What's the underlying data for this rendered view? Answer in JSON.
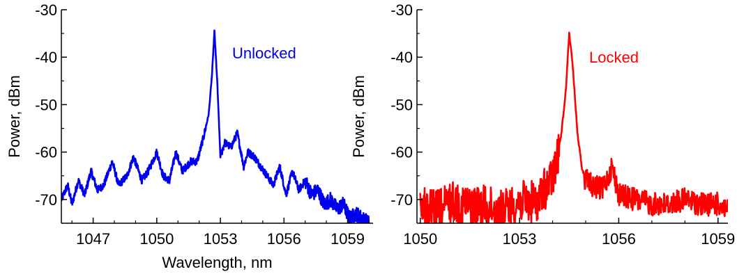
{
  "chart_data": [
    {
      "type": "line",
      "title": "",
      "xlabel": "Wavelength, nm",
      "ylabel": "Power, dBm",
      "xlim": [
        1045.5,
        1060.2
      ],
      "ylim": [
        -75,
        -30
      ],
      "xticks": [
        1047,
        1050,
        1053,
        1056,
        1059
      ],
      "xtick_labels": [
        "1047",
        "1050",
        "1053",
        "1056",
        "1059"
      ],
      "yticks": [
        -70,
        -60,
        -50,
        -40,
        -30
      ],
      "ytick_labels": [
        "-70",
        "-60",
        "-50",
        "-40",
        "-30"
      ],
      "annotation": "Unlocked",
      "color": "#0000ee",
      "series": [
        {
          "x": [
            1045.5,
            1045.8,
            1046.0,
            1046.3,
            1046.6,
            1046.9,
            1047.2,
            1047.5,
            1047.9,
            1048.2,
            1048.6,
            1048.9,
            1049.3,
            1049.6,
            1050.0,
            1050.3,
            1050.6,
            1050.9,
            1051.2,
            1051.6,
            1051.9,
            1052.2,
            1052.45,
            1052.6,
            1052.72,
            1052.85,
            1053.0,
            1053.2,
            1053.5,
            1053.8,
            1054.1,
            1054.3,
            1054.6,
            1054.9,
            1055.2,
            1055.5,
            1055.8,
            1056.1,
            1056.4,
            1056.7,
            1057.0,
            1057.3,
            1057.6,
            1057.9,
            1058.2,
            1058.5,
            1058.8,
            1059.1,
            1059.4,
            1059.7,
            1060.0
          ],
          "values": [
            -70,
            -67,
            -71,
            -66,
            -69,
            -64,
            -68,
            -67,
            -62,
            -67,
            -65,
            -61,
            -66,
            -64,
            -60,
            -65,
            -66,
            -60,
            -64,
            -62,
            -62,
            -57,
            -52,
            -44,
            -34.5,
            -45,
            -61,
            -58,
            -59,
            -56,
            -63,
            -60,
            -61,
            -63,
            -65,
            -67,
            -63,
            -69,
            -64,
            -68,
            -66,
            -69,
            -68,
            -71,
            -70,
            -72,
            -71,
            -74,
            -73,
            -74,
            -75
          ]
        }
      ]
    },
    {
      "type": "line",
      "title": "",
      "xlabel": "",
      "ylabel": "Power, dBm",
      "xlim": [
        1049.9,
        1059.3
      ],
      "ylim": [
        -75,
        -30
      ],
      "xticks": [
        1050,
        1053,
        1056,
        1059
      ],
      "xtick_labels": [
        "1050",
        "1053",
        "1056",
        "1059"
      ],
      "yticks": [
        -70,
        -60,
        -50,
        -40,
        -30
      ],
      "ytick_labels": [
        "-70",
        "-60",
        "-50",
        "-40",
        "-30"
      ],
      "annotation": "Locked",
      "color": "#ff0000",
      "series": [
        {
          "x": [
            1050.0,
            1050.5,
            1051.0,
            1051.5,
            1052.0,
            1052.5,
            1053.0,
            1053.5,
            1054.0,
            1054.25,
            1054.4,
            1054.5,
            1054.6,
            1054.75,
            1054.9,
            1055.2,
            1055.5,
            1055.8,
            1056.0,
            1056.5,
            1057.0,
            1057.5,
            1058.0,
            1058.5,
            1059.0,
            1059.3
          ],
          "values": [
            -70,
            -71,
            -69,
            -70,
            -70,
            -71,
            -69,
            -69,
            -64,
            -57,
            -47,
            -35,
            -41,
            -56,
            -64,
            -66,
            -67,
            -62,
            -68,
            -69,
            -70,
            -70,
            -69,
            -70,
            -70,
            -71
          ]
        }
      ]
    }
  ]
}
